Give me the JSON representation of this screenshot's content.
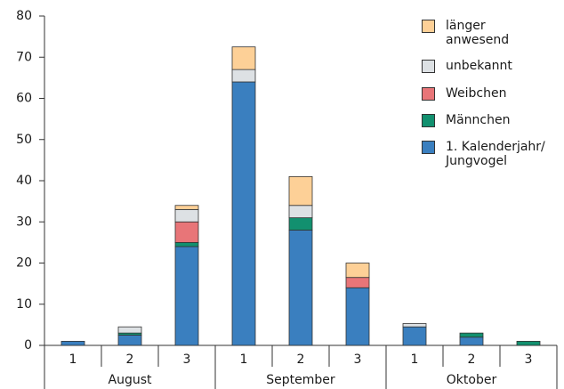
{
  "chart_data": {
    "type": "bar",
    "stacked": true,
    "groups": [
      "August",
      "September",
      "Oktober"
    ],
    "categories": [
      "1",
      "2",
      "3",
      "1",
      "2",
      "3",
      "1",
      "2",
      "3"
    ],
    "series": [
      {
        "name": "1. Kalenderjahr/\nJungvogel",
        "color": "#3a7fbf",
        "values": [
          1,
          2.5,
          24,
          64,
          28,
          14,
          4.5,
          2,
          0
        ]
      },
      {
        "name": "Männchen",
        "color": "#12906f",
        "values": [
          0,
          0.5,
          1,
          0,
          3,
          0,
          0,
          1,
          1
        ]
      },
      {
        "name": "Weibchen",
        "color": "#e87578",
        "values": [
          0,
          0,
          5,
          0,
          0,
          2.5,
          0,
          0,
          0
        ]
      },
      {
        "name": "unbekannt",
        "color": "#dde1e4",
        "values": [
          0,
          1.5,
          3,
          3,
          3,
          0,
          0.8,
          0,
          0
        ]
      },
      {
        "name": "länger\nanwesend",
        "color": "#fdd097",
        "values": [
          0,
          0,
          1,
          5.5,
          7,
          3.5,
          0,
          0,
          0
        ]
      }
    ],
    "ylim": [
      0,
      80
    ],
    "yticks": [
      0,
      10,
      20,
      30,
      40,
      50,
      60,
      70,
      80
    ]
  }
}
